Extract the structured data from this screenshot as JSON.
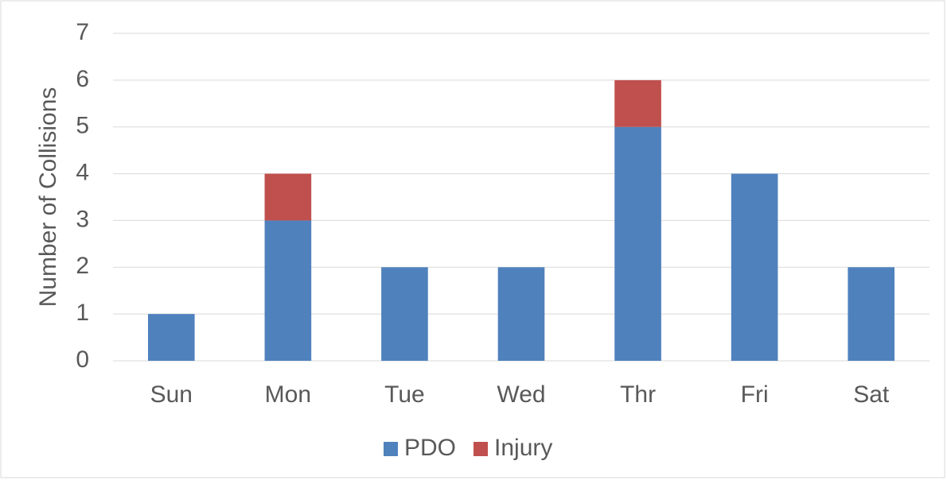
{
  "chart_data": {
    "type": "bar",
    "stacked": true,
    "y_label": "Number of Collisions",
    "categories": [
      "Sun",
      "Mon",
      "Tue",
      "Wed",
      "Thr",
      "Fri",
      "Sat"
    ],
    "series": [
      {
        "name": "PDO",
        "color": "#4f81bd",
        "values": [
          1,
          3,
          2,
          2,
          5,
          4,
          2
        ]
      },
      {
        "name": "Injury",
        "color": "#c0504d",
        "values": [
          0,
          1,
          0,
          0,
          1,
          0,
          0
        ]
      }
    ],
    "ylim": [
      0,
      7
    ],
    "yticks": [
      0,
      1,
      2,
      3,
      4,
      5,
      6,
      7
    ],
    "grid": true,
    "legend": "bottom"
  }
}
